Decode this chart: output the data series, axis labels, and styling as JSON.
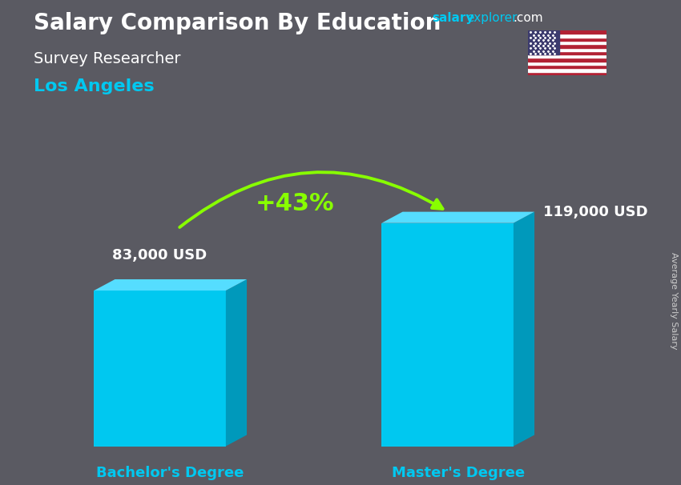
{
  "title_main": "Salary Comparison By Education",
  "subtitle_job": "Survey Researcher",
  "subtitle_city": "Los Angeles",
  "categories": [
    "Bachelor's Degree",
    "Master's Degree"
  ],
  "values": [
    83000,
    119000
  ],
  "value_labels": [
    "83,000 USD",
    "119,000 USD"
  ],
  "pct_change": "+43%",
  "bar_color_front": "#00C8F0",
  "bar_color_right": "#0099BB",
  "bar_color_top": "#55DDFF",
  "bg_color": "#5a5a62",
  "title_color": "#FFFFFF",
  "subtitle_job_color": "#FFFFFF",
  "subtitle_city_color": "#00C8F0",
  "value_label_color": "#FFFFFF",
  "xlabel_color": "#00C8F0",
  "pct_color": "#88FF00",
  "side_label": "Average Yearly Salary",
  "salary_color": "#00C8F0",
  "explorer_color": "#00C8F0",
  "dotcom_color": "#FFFFFF",
  "ylim": [
    0,
    150000
  ],
  "figsize": [
    8.5,
    6.06
  ],
  "dpi": 100
}
